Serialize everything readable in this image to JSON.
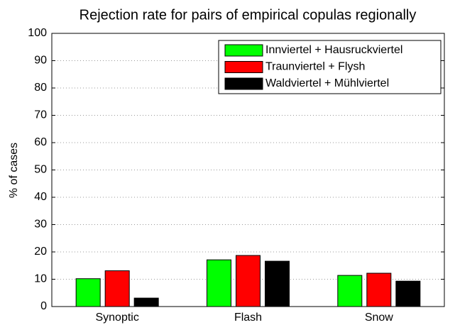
{
  "chart_data": {
    "type": "bar",
    "title": "Rejection rate for pairs of empirical copulas regionally",
    "ylabel": "% of cases",
    "categories": [
      "Synoptic",
      "Flash",
      "Snow"
    ],
    "series": [
      {
        "name": "Innviertel + Hausruckviertel",
        "color": "#00ff00",
        "values": [
          10.2,
          17.1,
          11.4
        ]
      },
      {
        "name": "Traunviertel + Flysh",
        "color": "#ff0000",
        "values": [
          13.1,
          18.7,
          12.2
        ]
      },
      {
        "name": "Waldviertel + Mühlviertel",
        "color": "#000000",
        "values": [
          3.1,
          16.6,
          9.3
        ]
      }
    ],
    "ylim": [
      0,
      100
    ],
    "yticks": [
      0,
      10,
      20,
      30,
      40,
      50,
      60,
      70,
      80,
      90,
      100
    ],
    "grid": true,
    "legend": "top-right"
  }
}
